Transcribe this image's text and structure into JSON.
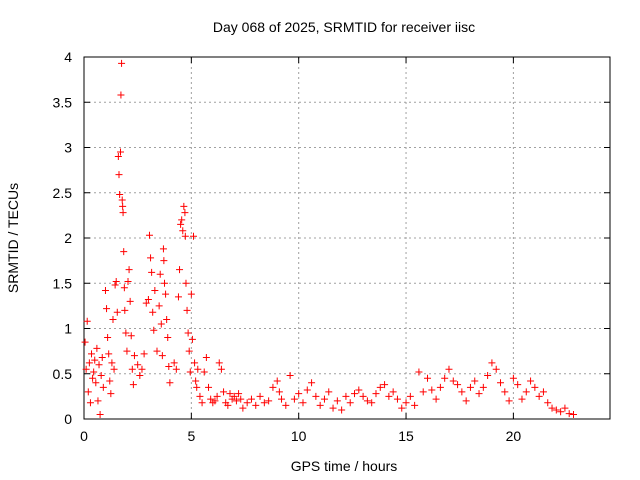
{
  "chart_data": {
    "type": "scatter",
    "title": "Day 068 of 2025, SRMTID for receiver iisc",
    "xlabel": "GPS time / hours",
    "ylabel": "SRMTID / TECUs",
    "xlim": [
      0,
      24.5
    ],
    "ylim": [
      0,
      4
    ],
    "xticks": [
      0,
      5,
      10,
      15,
      20
    ],
    "xtick_labels": [
      "0",
      "5",
      "10",
      "15",
      "20"
    ],
    "yticks": [
      0,
      0.5,
      1,
      1.5,
      2,
      2.5,
      3,
      3.5,
      4
    ],
    "ytick_labels": [
      "0",
      "0.5",
      "1",
      "1.5",
      "2",
      "2.5",
      "3",
      "3.5",
      "4"
    ],
    "grid": true,
    "marker": "+",
    "series": [
      {
        "name": "SRMTID",
        "color": "#ff0000",
        "points": [
          [
            0.05,
            0.85
          ],
          [
            0.1,
            0.55
          ],
          [
            0.15,
            1.08
          ],
          [
            0.2,
            0.3
          ],
          [
            0.25,
            0.62
          ],
          [
            0.3,
            0.18
          ],
          [
            0.35,
            0.72
          ],
          [
            0.4,
            0.45
          ],
          [
            0.45,
            0.52
          ],
          [
            0.5,
            0.65
          ],
          [
            0.55,
            0.4
          ],
          [
            0.6,
            0.78
          ],
          [
            0.65,
            0.2
          ],
          [
            0.7,
            0.6
          ],
          [
            0.75,
            0.05
          ],
          [
            0.8,
            0.48
          ],
          [
            0.85,
            0.68
          ],
          [
            0.9,
            0.35
          ],
          [
            1.0,
            1.42
          ],
          [
            1.05,
            1.22
          ],
          [
            1.1,
            0.9
          ],
          [
            1.15,
            0.72
          ],
          [
            1.2,
            0.42
          ],
          [
            1.25,
            0.28
          ],
          [
            1.3,
            0.62
          ],
          [
            1.35,
            1.1
          ],
          [
            1.4,
            0.55
          ],
          [
            1.45,
            1.48
          ],
          [
            1.5,
            1.52
          ],
          [
            1.55,
            1.18
          ],
          [
            1.6,
            2.9
          ],
          [
            1.63,
            2.7
          ],
          [
            1.66,
            2.48
          ],
          [
            1.7,
            2.95
          ],
          [
            1.72,
            3.58
          ],
          [
            1.75,
            3.93
          ],
          [
            1.78,
            2.42
          ],
          [
            1.8,
            2.35
          ],
          [
            1.82,
            2.28
          ],
          [
            1.85,
            1.85
          ],
          [
            1.88,
            1.45
          ],
          [
            1.9,
            1.2
          ],
          [
            1.95,
            0.95
          ],
          [
            2.0,
            0.75
          ],
          [
            2.05,
            1.52
          ],
          [
            2.1,
            1.65
          ],
          [
            2.15,
            1.3
          ],
          [
            2.2,
            0.92
          ],
          [
            2.25,
            0.55
          ],
          [
            2.3,
            0.38
          ],
          [
            2.35,
            0.7
          ],
          [
            2.5,
            0.6
          ],
          [
            2.6,
            0.48
          ],
          [
            2.7,
            0.55
          ],
          [
            2.8,
            0.72
          ],
          [
            2.9,
            1.28
          ],
          [
            3.0,
            1.32
          ],
          [
            3.05,
            2.03
          ],
          [
            3.1,
            1.78
          ],
          [
            3.15,
            1.62
          ],
          [
            3.2,
            1.18
          ],
          [
            3.25,
            0.98
          ],
          [
            3.3,
            1.42
          ],
          [
            3.4,
            0.75
          ],
          [
            3.5,
            1.25
          ],
          [
            3.55,
            1.6
          ],
          [
            3.6,
            1.05
          ],
          [
            3.65,
            0.7
          ],
          [
            3.7,
            1.88
          ],
          [
            3.72,
            1.75
          ],
          [
            3.75,
            1.5
          ],
          [
            3.8,
            1.38
          ],
          [
            3.85,
            1.1
          ],
          [
            3.9,
            0.9
          ],
          [
            3.95,
            0.58
          ],
          [
            4.0,
            0.4
          ],
          [
            4.2,
            0.62
          ],
          [
            4.3,
            0.55
          ],
          [
            4.4,
            1.35
          ],
          [
            4.45,
            1.65
          ],
          [
            4.5,
            2.15
          ],
          [
            4.55,
            2.2
          ],
          [
            4.6,
            2.08
          ],
          [
            4.65,
            2.35
          ],
          [
            4.7,
            2.28
          ],
          [
            4.72,
            2.02
          ],
          [
            4.75,
            1.5
          ],
          [
            4.8,
            1.2
          ],
          [
            4.85,
            0.95
          ],
          [
            4.9,
            0.75
          ],
          [
            4.95,
            0.52
          ],
          [
            5.0,
            1.38
          ],
          [
            5.05,
            0.88
          ],
          [
            5.1,
            2.02
          ],
          [
            5.15,
            0.62
          ],
          [
            5.2,
            0.42
          ],
          [
            5.25,
            0.35
          ],
          [
            5.3,
            0.55
          ],
          [
            5.4,
            0.25
          ],
          [
            5.5,
            0.18
          ],
          [
            5.6,
            0.52
          ],
          [
            5.7,
            0.68
          ],
          [
            5.8,
            0.35
          ],
          [
            5.9,
            0.22
          ],
          [
            6.0,
            0.18
          ],
          [
            6.1,
            0.2
          ],
          [
            6.2,
            0.25
          ],
          [
            6.3,
            0.62
          ],
          [
            6.4,
            0.55
          ],
          [
            6.5,
            0.3
          ],
          [
            6.6,
            0.18
          ],
          [
            6.7,
            0.15
          ],
          [
            6.8,
            0.28
          ],
          [
            6.9,
            0.22
          ],
          [
            7.0,
            0.25
          ],
          [
            7.1,
            0.2
          ],
          [
            7.2,
            0.28
          ],
          [
            7.3,
            0.22
          ],
          [
            7.4,
            0.12
          ],
          [
            7.6,
            0.18
          ],
          [
            7.8,
            0.22
          ],
          [
            8.0,
            0.15
          ],
          [
            8.2,
            0.25
          ],
          [
            8.4,
            0.18
          ],
          [
            8.6,
            0.2
          ],
          [
            8.8,
            0.35
          ],
          [
            9.0,
            0.42
          ],
          [
            9.1,
            0.3
          ],
          [
            9.2,
            0.22
          ],
          [
            9.4,
            0.15
          ],
          [
            9.6,
            0.48
          ],
          [
            9.8,
            0.22
          ],
          [
            10.0,
            0.28
          ],
          [
            10.2,
            0.18
          ],
          [
            10.4,
            0.32
          ],
          [
            10.6,
            0.4
          ],
          [
            10.8,
            0.25
          ],
          [
            11.0,
            0.15
          ],
          [
            11.2,
            0.22
          ],
          [
            11.4,
            0.3
          ],
          [
            11.6,
            0.12
          ],
          [
            11.8,
            0.2
          ],
          [
            12.0,
            0.1
          ],
          [
            12.2,
            0.25
          ],
          [
            12.4,
            0.18
          ],
          [
            12.6,
            0.28
          ],
          [
            12.8,
            0.32
          ],
          [
            13.0,
            0.25
          ],
          [
            13.2,
            0.2
          ],
          [
            13.4,
            0.18
          ],
          [
            13.6,
            0.28
          ],
          [
            13.8,
            0.35
          ],
          [
            14.0,
            0.38
          ],
          [
            14.2,
            0.25
          ],
          [
            14.4,
            0.3
          ],
          [
            14.6,
            0.22
          ],
          [
            14.8,
            0.12
          ],
          [
            15.0,
            0.18
          ],
          [
            15.2,
            0.25
          ],
          [
            15.4,
            0.15
          ],
          [
            15.6,
            0.52
          ],
          [
            15.8,
            0.3
          ],
          [
            16.0,
            0.45
          ],
          [
            16.2,
            0.32
          ],
          [
            16.4,
            0.22
          ],
          [
            16.6,
            0.35
          ],
          [
            16.8,
            0.45
          ],
          [
            17.0,
            0.55
          ],
          [
            17.2,
            0.42
          ],
          [
            17.4,
            0.38
          ],
          [
            17.6,
            0.3
          ],
          [
            17.8,
            0.2
          ],
          [
            18.0,
            0.35
          ],
          [
            18.2,
            0.42
          ],
          [
            18.4,
            0.28
          ],
          [
            18.6,
            0.35
          ],
          [
            18.8,
            0.48
          ],
          [
            19.0,
            0.62
          ],
          [
            19.2,
            0.55
          ],
          [
            19.4,
            0.4
          ],
          [
            19.6,
            0.3
          ],
          [
            19.8,
            0.2
          ],
          [
            20.0,
            0.45
          ],
          [
            20.2,
            0.38
          ],
          [
            20.4,
            0.22
          ],
          [
            20.6,
            0.3
          ],
          [
            20.8,
            0.42
          ],
          [
            21.0,
            0.35
          ],
          [
            21.2,
            0.25
          ],
          [
            21.4,
            0.3
          ],
          [
            21.6,
            0.18
          ],
          [
            21.8,
            0.12
          ],
          [
            22.0,
            0.1
          ],
          [
            22.2,
            0.08
          ],
          [
            22.4,
            0.12
          ],
          [
            22.6,
            0.06
          ],
          [
            22.8,
            0.05
          ]
        ]
      }
    ]
  }
}
